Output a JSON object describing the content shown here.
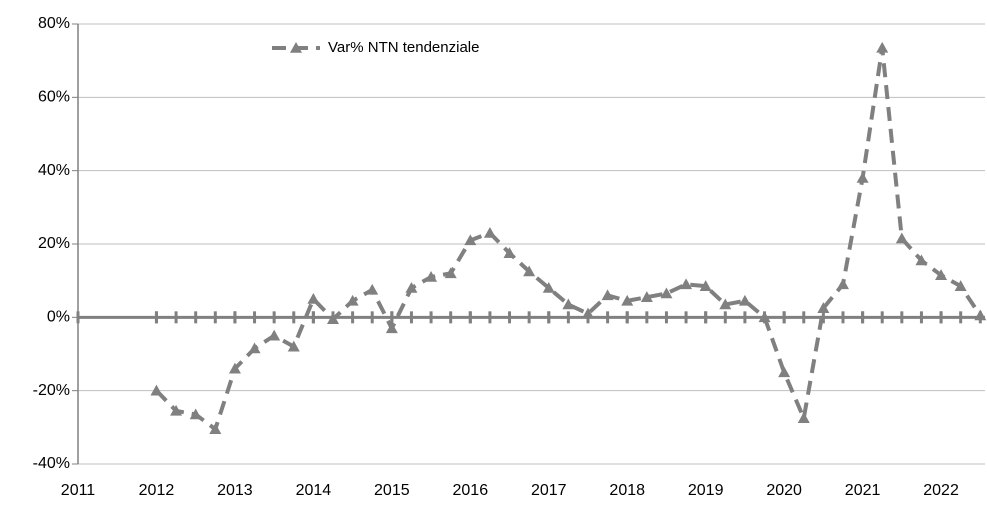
{
  "chart_data": {
    "type": "line",
    "x": [
      2012,
      2012.25,
      2012.5,
      2012.75,
      2013,
      2013.25,
      2013.5,
      2013.75,
      2014,
      2014.25,
      2014.5,
      2014.75,
      2015,
      2015.25,
      2015.5,
      2015.75,
      2016,
      2016.25,
      2016.5,
      2016.75,
      2017,
      2017.25,
      2017.5,
      2017.75,
      2018,
      2018.25,
      2018.5,
      2018.75,
      2019,
      2019.25,
      2019.5,
      2019.75,
      2020,
      2020.25,
      2020.5,
      2020.75,
      2021,
      2021.25,
      2021.5,
      2021.75,
      2022,
      2022.25,
      2022.5
    ],
    "series": [
      {
        "name": "Var% NTN tendenziale",
        "color": "#808080",
        "values": [
          -20,
          -25.5,
          -26.5,
          -30.5,
          -14,
          -8.5,
          -5,
          -8,
          5,
          -0.5,
          4.5,
          7.5,
          -3,
          8,
          11,
          12,
          21,
          23,
          17.5,
          12.5,
          8,
          3.5,
          1,
          6,
          4.5,
          5.5,
          6.5,
          9,
          8.5,
          3.5,
          4.5,
          0,
          -15,
          -27.5,
          2.5,
          9,
          38,
          73.5,
          21.5,
          15.5,
          11.5,
          8.5,
          0.5
        ]
      }
    ],
    "xlim": [
      2011,
      2022.56
    ],
    "xticks": [
      2011,
      2012,
      2013,
      2014,
      2015,
      2016,
      2017,
      2018,
      2019,
      2020,
      2021,
      2022
    ],
    "ylim": [
      -40,
      80
    ],
    "yticks": [
      {
        "value": -40,
        "label": "-40%"
      },
      {
        "value": -20,
        "label": "-20%"
      },
      {
        "value": 0,
        "label": "0%"
      },
      {
        "value": 20,
        "label": "20%"
      },
      {
        "value": 40,
        "label": "40%"
      },
      {
        "value": 60,
        "label": "60%"
      },
      {
        "value": 80,
        "label": "80%"
      }
    ],
    "grid": true,
    "legend": "top"
  }
}
